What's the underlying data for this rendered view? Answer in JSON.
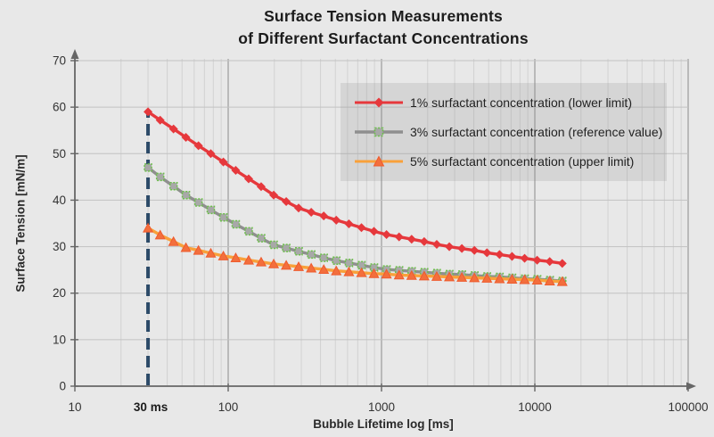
{
  "title": {
    "line1": "Surface Tension Measurements",
    "line2": "of Different Surfactant Concentrations"
  },
  "chart_data": {
    "type": "line",
    "title": "Surface Tension Measurements of Different Surfactant Concentrations",
    "xlabel": "Bubble Lifetime log [ms]",
    "ylabel": "Surface Tension [mN/m]",
    "x_scale": "log",
    "xlim": [
      10,
      100000
    ],
    "ylim": [
      0,
      70
    ],
    "x_ticks": [
      10,
      100,
      1000,
      10000,
      100000
    ],
    "y_ticks": [
      0,
      10,
      20,
      30,
      40,
      50,
      60,
      70
    ],
    "grid": "major+minor",
    "legend_position": "upper right",
    "annotation": {
      "label": "30 ms",
      "x": 30,
      "line_color": "#2c4a68",
      "line_style": "dashed"
    },
    "x": [
      30,
      36,
      44,
      53,
      64,
      77,
      93,
      112,
      136,
      164,
      198,
      239,
      288,
      348,
      420,
      507,
      613,
      740,
      893,
      1078,
      1302,
      1572,
      1898,
      2292,
      2768,
      3342,
      4035,
      4872,
      5883,
      7103,
      8576,
      10355,
      12503,
      15097
    ],
    "series": [
      {
        "name": "1% surfactant concentration (lower limit)",
        "marker": "diamond",
        "line_color": "#e6383c",
        "marker_color": "#e6383c",
        "marker_edge": "#d92b2f",
        "values": [
          59,
          57.2,
          55.3,
          53.5,
          51.7,
          50,
          48.2,
          46.4,
          44.6,
          42.9,
          41.1,
          39.7,
          38.3,
          37.4,
          36.6,
          35.7,
          34.9,
          34.1,
          33.3,
          32.6,
          32.1,
          31.6,
          31.1,
          30.5,
          30,
          29.6,
          29.2,
          28.7,
          28.3,
          27.9,
          27.5,
          27.1,
          26.8,
          26.4
        ]
      },
      {
        "name": "3% surfactant concentration (reference value)",
        "marker": "square-open",
        "line_color": "#8f8f8f",
        "marker_color": "#a8a8a8",
        "marker_edge": "#6cc04a",
        "values": [
          47,
          45,
          43,
          41.1,
          39.5,
          37.9,
          36.3,
          34.8,
          33.3,
          31.8,
          30.4,
          29.7,
          29,
          28.3,
          27.6,
          27,
          26.5,
          26,
          25.5,
          25.1,
          24.9,
          24.7,
          24.5,
          24.3,
          24.1,
          24,
          23.8,
          23.6,
          23.5,
          23.3,
          23.1,
          23,
          22.8,
          22.6
        ]
      },
      {
        "name": "5% surfactant concentration (upper limit)",
        "marker": "triangle",
        "line_color": "#f9a13a",
        "marker_color": "#f36f3d",
        "marker_edge": "#ee5b2e",
        "values": [
          34,
          32.5,
          31.1,
          29.8,
          29.2,
          28.6,
          28,
          27.6,
          27.1,
          26.7,
          26.3,
          26,
          25.7,
          25.4,
          25.1,
          24.8,
          24.6,
          24.4,
          24.2,
          24.1,
          23.9,
          23.8,
          23.7,
          23.6,
          23.5,
          23.4,
          23.3,
          23.2,
          23.1,
          23,
          22.9,
          22.8,
          22.6,
          22.5
        ]
      }
    ]
  },
  "colors": {
    "background": "#e8e8e8",
    "axis": "#666666",
    "grid_minor": "#d2d2d2",
    "grid_major": "#a0a0a0",
    "grid_horizontal": "#c2c2c2",
    "tick_text": "#333333",
    "annotation_line": "#2c4a68"
  }
}
